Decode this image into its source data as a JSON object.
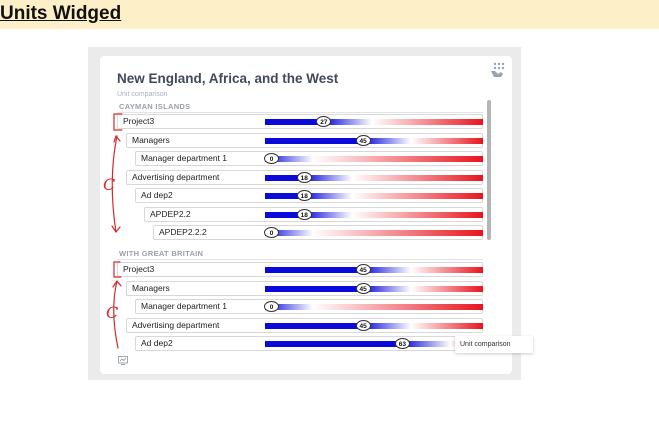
{
  "page": {
    "heading": "Units Widged"
  },
  "widget": {
    "title": "New England, Africa, and the West",
    "subtitle": "Unit comparison",
    "grid_icon": "grid-hand-icon",
    "chart_icon": "chart-icon"
  },
  "sections": [
    {
      "label": "CAYMAN ISLANDS",
      "rows": [
        {
          "label": "Project3",
          "value": "27",
          "fraction": 0.27,
          "indent": 0
        },
        {
          "label": "Managers",
          "value": "45",
          "fraction": 0.45,
          "indent": 1
        },
        {
          "label": "Manager department 1",
          "value": "0",
          "fraction": 0.0,
          "indent": 2
        },
        {
          "label": "Advertising department",
          "value": "18",
          "fraction": 0.18,
          "indent": 1
        },
        {
          "label": "Ad dep2",
          "value": "18",
          "fraction": 0.18,
          "indent": 2
        },
        {
          "label": "APDEP2.2",
          "value": "18",
          "fraction": 0.18,
          "indent": 3
        },
        {
          "label": "APDEP2.2.2",
          "value": "0",
          "fraction": 0.0,
          "indent": 4
        }
      ]
    },
    {
      "label": "WITH GREAT BRITAIN",
      "rows": [
        {
          "label": "Project3",
          "value": "45",
          "fraction": 0.45,
          "indent": 0
        },
        {
          "label": "Managers",
          "value": "45",
          "fraction": 0.45,
          "indent": 1
        },
        {
          "label": "Manager department 1",
          "value": "0",
          "fraction": 0.0,
          "indent": 2
        },
        {
          "label": "Advertising department",
          "value": "45",
          "fraction": 0.45,
          "indent": 1
        },
        {
          "label": "Ad dep2",
          "value": "63",
          "fraction": 0.63,
          "indent": 2
        }
      ]
    }
  ],
  "tooltip": {
    "text": "Unit comparison"
  },
  "annotations": {
    "letter": "C",
    "color": "#d62a2a"
  },
  "colors": {
    "bar_low": "#0a0adc",
    "bar_high": "#e8141e",
    "scroll_thumb": "#b5b5b5"
  }
}
